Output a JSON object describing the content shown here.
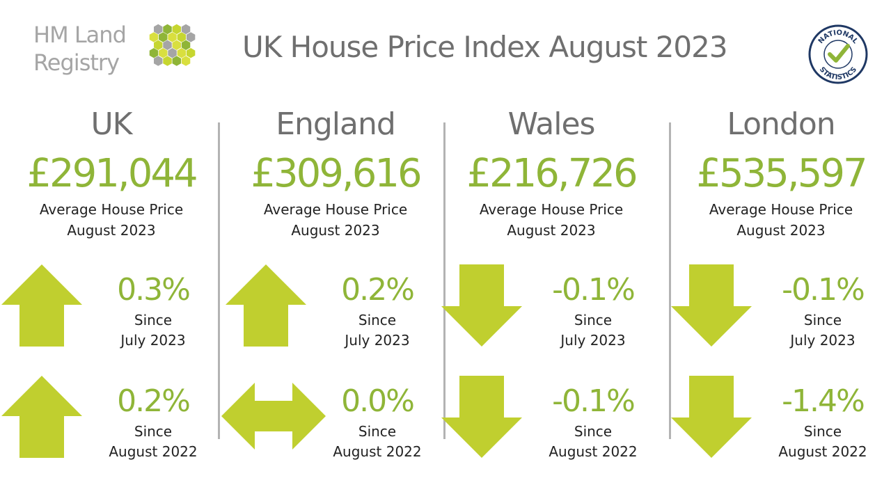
{
  "logo": {
    "line1": "HM Land",
    "line2": "Registry",
    "hex_colors": [
      "#a5a5a5",
      "#8fb538",
      "#d9df3f",
      "#c6d630",
      "#e9ec7a"
    ]
  },
  "title": "UK House Price Index August 2023",
  "badge": {
    "top_text": "NATIONAL",
    "bottom_text": "STATISTICS",
    "ring_color": "#1f3864",
    "tick_color": "#8fb538"
  },
  "colors": {
    "accent": "#8fb538",
    "arrow": "#c0cf2f",
    "text_grey": "#6f6f6f",
    "divider": "#b3b3b3"
  },
  "regions": [
    {
      "name": "UK",
      "price": "£291,044",
      "caption_line1": "Average House Price",
      "caption_line2": "August 2023",
      "monthly": {
        "direction": "up",
        "value": "0.3%",
        "since": "Since",
        "period": "July 2023"
      },
      "annual": {
        "direction": "up",
        "value": "0.2%",
        "since": "Since",
        "period": "August 2022"
      }
    },
    {
      "name": "England",
      "price": "£309,616",
      "caption_line1": "Average House Price",
      "caption_line2": "August 2023",
      "monthly": {
        "direction": "up",
        "value": "0.2%",
        "since": "Since",
        "period": "July 2023"
      },
      "annual": {
        "direction": "flat",
        "value": "0.0%",
        "since": "Since",
        "period": "August 2022"
      }
    },
    {
      "name": "Wales",
      "price": "£216,726",
      "caption_line1": "Average House Price",
      "caption_line2": "August 2023",
      "monthly": {
        "direction": "down",
        "value": "-0.1%",
        "since": "Since",
        "period": "July 2023"
      },
      "annual": {
        "direction": "down",
        "value": "-0.1%",
        "since": "Since",
        "period": "August 2022"
      }
    },
    {
      "name": "London",
      "price": "£535,597",
      "caption_line1": "Average House Price",
      "caption_line2": "August 2023",
      "monthly": {
        "direction": "down",
        "value": "-0.1%",
        "since": "Since",
        "period": "July 2023"
      },
      "annual": {
        "direction": "down",
        "value": "-1.4%",
        "since": "Since",
        "period": "August 2022"
      }
    }
  ]
}
